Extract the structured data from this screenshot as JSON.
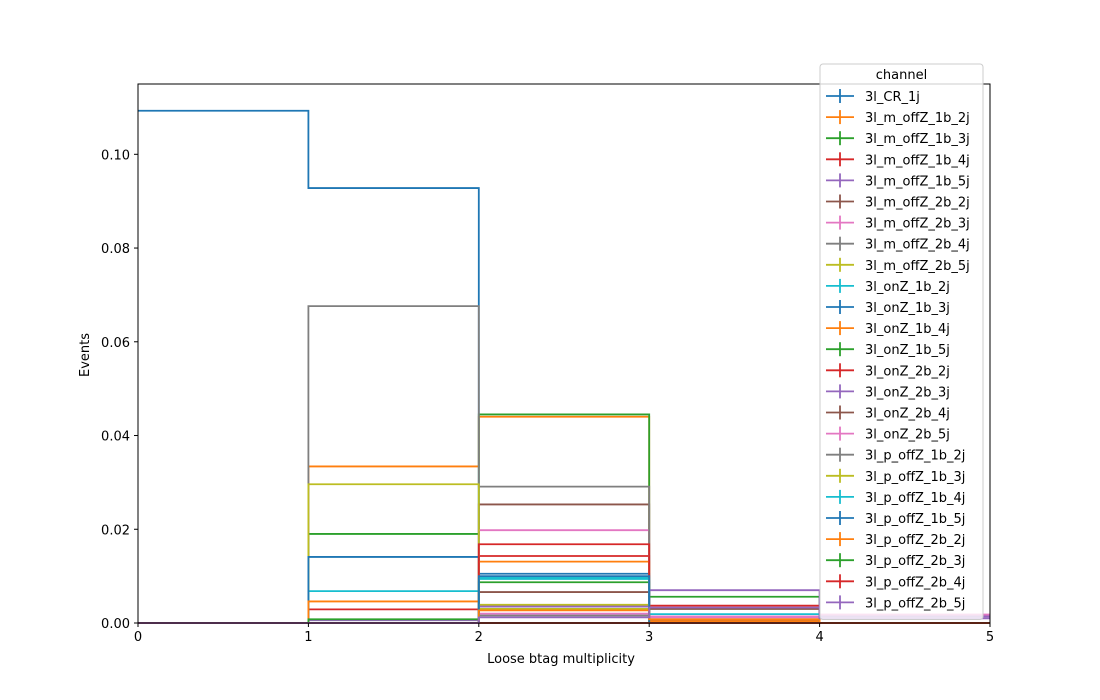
{
  "chart_data": {
    "type": "histogram-step",
    "xlabel": "Loose btag multiplicity",
    "ylabel": "Events",
    "xlim": [
      0,
      5
    ],
    "ylim": [
      0,
      0.115
    ],
    "bin_edges": [
      0,
      1,
      2,
      3,
      4,
      5
    ],
    "x_ticks": [
      "0",
      "1",
      "2",
      "3",
      "4",
      "5"
    ],
    "y_ticks": [
      "0.00",
      "0.02",
      "0.04",
      "0.06",
      "0.08",
      "0.10"
    ],
    "y_tick_values": [
      0,
      0.02,
      0.04,
      0.06,
      0.08,
      0.1
    ],
    "grid": false,
    "legend_title": "channel",
    "legend_placement": "upper right",
    "series": [
      {
        "name": "3l_CR_1j",
        "color": "#1f77b4",
        "values": [
          0.1093,
          0.0928,
          0.0,
          0.0,
          0.0
        ]
      },
      {
        "name": "3l_m_offZ_1b_2j",
        "color": "#ff7f0e",
        "values": [
          0.0,
          0.0334,
          0.044,
          0.0,
          0.0
        ]
      },
      {
        "name": "3l_m_offZ_1b_3j",
        "color": "#2ca02c",
        "values": [
          0.0,
          0.019,
          0.0445,
          0.0,
          0.0
        ]
      },
      {
        "name": "3l_m_offZ_1b_4j",
        "color": "#d62728",
        "values": [
          0.0,
          0.0029,
          0.0143,
          0.0,
          0.0
        ]
      },
      {
        "name": "3l_m_offZ_1b_5j",
        "color": "#9467bd",
        "values": [
          0.0,
          0.0006,
          0.0035,
          0.0,
          0.0
        ]
      },
      {
        "name": "3l_m_offZ_2b_2j",
        "color": "#8c564b",
        "values": [
          0.0,
          0.0,
          0.0253,
          0.0007,
          0.0
        ]
      },
      {
        "name": "3l_m_offZ_2b_3j",
        "color": "#e377c2",
        "values": [
          0.0,
          0.0,
          0.0198,
          0.0014,
          0.0
        ]
      },
      {
        "name": "3l_m_offZ_2b_4j",
        "color": "#7f7f7f",
        "values": [
          0.0,
          0.0676,
          0.0291,
          0.0008,
          0.0
        ]
      },
      {
        "name": "3l_m_offZ_2b_5j",
        "color": "#bcbd22",
        "values": [
          0.0,
          0.0296,
          0.003,
          0.0,
          0.0
        ]
      },
      {
        "name": "3l_onZ_1b_2j",
        "color": "#17becf",
        "values": [
          0.0,
          0.0068,
          0.0097,
          0.0,
          0.0
        ]
      },
      {
        "name": "3l_onZ_1b_3j",
        "color": "#1f77b4",
        "values": [
          0.0,
          0.0141,
          0.0105,
          0.0,
          0.0
        ]
      },
      {
        "name": "3l_onZ_1b_4j",
        "color": "#ff7f0e",
        "values": [
          0.0,
          0.0046,
          0.0131,
          0.0004,
          0.0
        ]
      },
      {
        "name": "3l_onZ_1b_5j",
        "color": "#2ca02c",
        "values": [
          0.0,
          0.0008,
          0.0087,
          0.0056,
          0.0
        ]
      },
      {
        "name": "3l_onZ_2b_2j",
        "color": "#d62728",
        "values": [
          0.0,
          0.0,
          0.0168,
          0.0037,
          0.0
        ]
      },
      {
        "name": "3l_onZ_2b_3j",
        "color": "#9467bd",
        "values": [
          0.0,
          0.0,
          0.0038,
          0.007,
          0.0014
        ]
      },
      {
        "name": "3l_onZ_2b_4j",
        "color": "#8c564b",
        "values": [
          0.0,
          0.0,
          0.0066,
          0.003,
          0.0
        ]
      },
      {
        "name": "3l_onZ_2b_5j",
        "color": "#e377c2",
        "values": [
          0.0,
          0.0,
          0.002,
          0.0012,
          0.0018
        ]
      },
      {
        "name": "3l_p_offZ_1b_2j",
        "color": "#7f7f7f",
        "values": [
          0.0,
          0.0,
          0.0016,
          0.0,
          0.0
        ]
      },
      {
        "name": "3l_p_offZ_1b_3j",
        "color": "#bcbd22",
        "values": [
          0.0,
          0.0,
          0.0039,
          0.0,
          0.0
        ]
      },
      {
        "name": "3l_p_offZ_1b_4j",
        "color": "#17becf",
        "values": [
          0.0,
          0.0,
          0.0094,
          0.0019,
          0.0
        ]
      },
      {
        "name": "3l_p_offZ_1b_5j",
        "color": "#1f77b4",
        "values": [
          0.0,
          0.0,
          0.01,
          0.0,
          0.0
        ]
      },
      {
        "name": "3l_p_offZ_2b_2j",
        "color": "#ff7f0e",
        "values": [
          0.0,
          0.0,
          0.0027,
          0.0008,
          0.0
        ]
      },
      {
        "name": "3l_p_offZ_2b_3j",
        "color": "#2ca02c",
        "values": [
          0.0,
          0.0,
          0.0,
          0.0,
          0.0
        ]
      },
      {
        "name": "3l_p_offZ_2b_4j",
        "color": "#d62728",
        "values": [
          0.0,
          0.0,
          0.0,
          0.0,
          0.0
        ]
      },
      {
        "name": "3l_p_offZ_2b_5j",
        "color": "#9467bd",
        "values": [
          0.0,
          0.0,
          0.0012,
          0.0033,
          0.001
        ]
      }
    ]
  }
}
